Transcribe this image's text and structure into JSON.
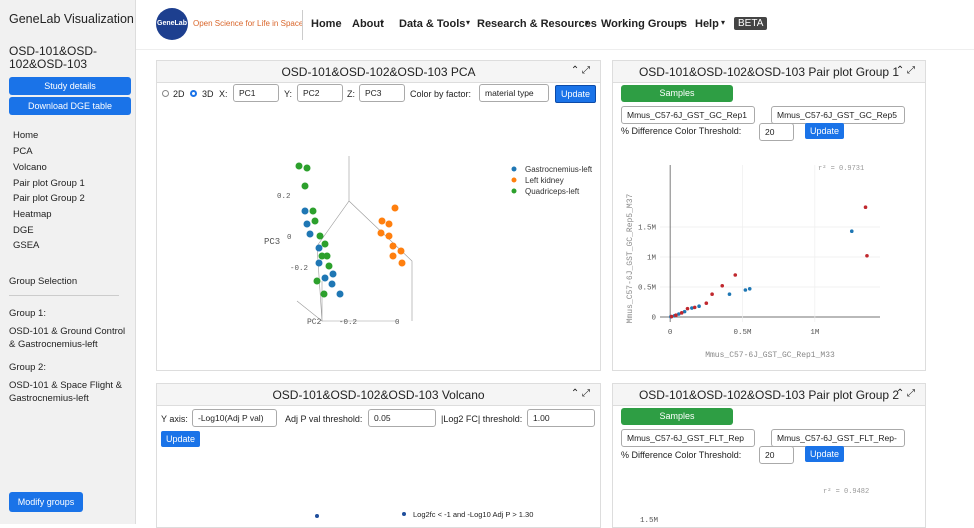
{
  "sidebar": {
    "title": "GeneLab Visualization",
    "dataset": "OSD-101&OSD-102&OSD-103",
    "buttons": [
      "Study details",
      "Download DGE table"
    ],
    "nav": [
      "Home",
      "PCA",
      "Volcano",
      "Pair plot Group 1",
      "Pair plot Group 2",
      "Heatmap",
      "DGE",
      "GSEA"
    ],
    "group_selection": "Group Selection",
    "groups": [
      {
        "label": "Group 1:",
        "text": "OSD-101 & Ground Control & Gastrocnemius-left"
      },
      {
        "label": "Group 2:",
        "text": "OSD-101 & Space Flight & Gastrocnemius-left"
      }
    ],
    "modify": "Modify groups"
  },
  "header": {
    "logo": "GeneLab",
    "tagline": "Open Science for Life in Space",
    "nav": [
      "Home",
      "About",
      "Data & Tools",
      "Research & Resources",
      "Working Groups",
      "Help"
    ],
    "badge": "BETA"
  },
  "pca": {
    "title": "OSD-101&OSD-102&OSD-103 PCA",
    "modes": [
      "2D",
      "3D"
    ],
    "axes": [
      {
        "label": "X:",
        "value": "PC1"
      },
      {
        "label": "Y:",
        "value": "PC2"
      },
      {
        "label": "Z:",
        "value": "PC3"
      }
    ],
    "color_label": "Color by factor:",
    "color_value": "material type",
    "button": "Update",
    "legend": [
      "Gastrocnemius-left",
      "Left kidney",
      "Quadriceps-left"
    ],
    "axis_labels": [
      "PC3",
      "PC2"
    ],
    "ticks": [
      "0.2",
      "0",
      "-0.2",
      "-0.2",
      "0"
    ]
  },
  "pair1": {
    "title": "OSD-101&OSD-102&OSD-103 Pair plot Group 1",
    "toggle": "Samples",
    "selects": [
      "Mmus_C57-6J_GST_GC_Rep1",
      "Mmus_C57-6J_GST_GC_Rep5"
    ],
    "threshold_label": "% Difference Color Threshold:",
    "threshold": "20",
    "button": "Update"
  },
  "chart_data": {
    "type": "scatter",
    "annotation": "r² = 0.9731",
    "x_label": "Mmus_C57-6J_GST_GC_Rep1_M33",
    "y_label": "Mmus_C57-6J_GST_GC_Rep5_M37",
    "xlim": [
      -70000,
      1450000
    ],
    "ylim": [
      -83000,
      2533000
    ],
    "xticks": [
      0,
      {
        "value": 500000,
        "label": "0.5M"
      },
      {
        "value": 1000000,
        "label": "1M"
      }
    ],
    "yticks": [
      0,
      {
        "value": 500000,
        "label": "0.5M"
      },
      {
        "value": 1000000,
        "label": "1M"
      },
      {
        "value": 1500000,
        "label": "1.5M"
      }
    ],
    "grid": true,
    "series": [
      {
        "color": "#1f77b4",
        "x": [
          1255000,
          550000,
          520000,
          410000,
          150000,
          100000,
          60000,
          30000,
          200000,
          5000
        ],
        "values": [
          1430000,
          470000,
          450000,
          380000,
          150000,
          90000,
          50000,
          20000,
          180000,
          5000
        ]
      },
      {
        "color": "#c0282e",
        "x": [
          1350000,
          1360000,
          450000,
          290000,
          360000,
          120000,
          80000,
          40000,
          170000,
          10000,
          250000
        ],
        "values": [
          1830000,
          1020000,
          700000,
          380000,
          520000,
          140000,
          70000,
          30000,
          160000,
          8000,
          230000
        ]
      }
    ]
  },
  "volcano": {
    "title": "OSD-101&OSD-102&OSD-103 Volcano",
    "y_label": "Y axis:",
    "y_value": "-Log10(Adj P val)",
    "p_label": "Adj P val threshold:",
    "p_value": "0.05",
    "fc_label": "|Log2 FC| threshold:",
    "fc_value": "1.00",
    "button": "Update",
    "legend": "Log2fc < -1 and -Log10 Adj P > 1.30"
  },
  "pair2": {
    "title": "OSD-101&OSD-102&OSD-103 Pair plot Group 2",
    "toggle": "Samples",
    "selects": [
      "Mmus_C57-6J_GST_FLT_Rep",
      "Mmus_C57-6J_GST_FLT_Rep-"
    ],
    "threshold_label": "% Difference Color Threshold:",
    "threshold": "20",
    "button": "Update",
    "annotation": "r² = 0.9482",
    "tick": "1.5M"
  }
}
